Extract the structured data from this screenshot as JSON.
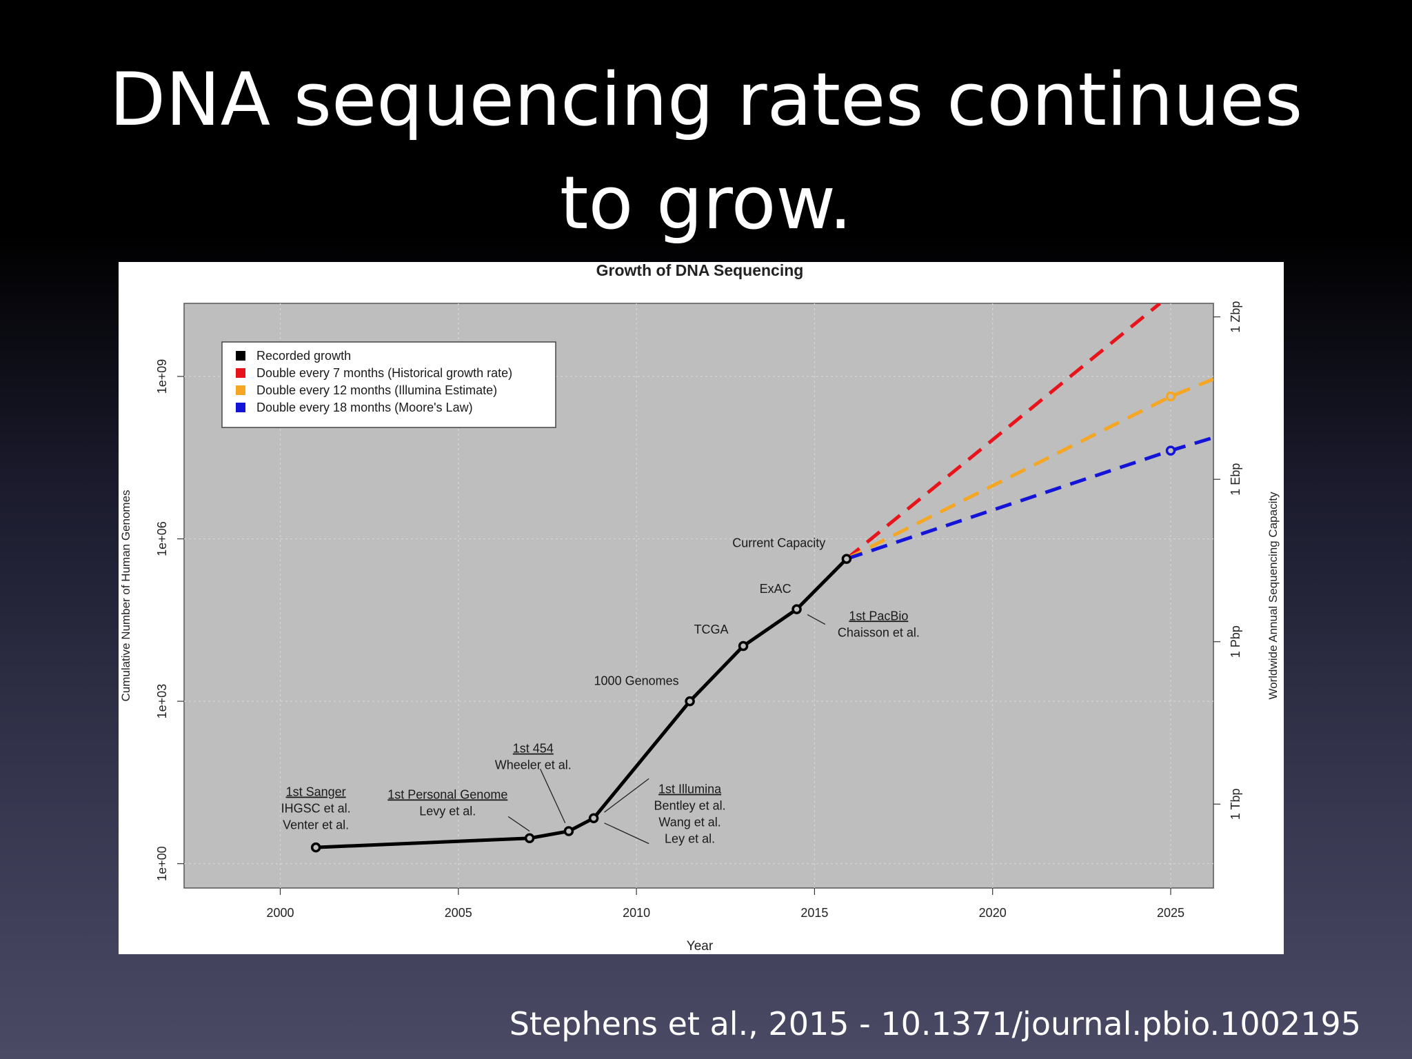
{
  "slide": {
    "title_line1": "DNA sequencing rates continues",
    "title_line2": "to grow.",
    "citation": "Stephens et al., 2015 - 10.1371/journal.pbio.1002195"
  },
  "chart_data": {
    "type": "line",
    "title": "Growth of DNA Sequencing",
    "xlabel": "Year",
    "ylabel": "Cumulative Number of Human Genomes",
    "y2label": "Worldwide Annual Sequencing Capacity",
    "y_scale": "log10",
    "xlim": [
      1997.3,
      2026.2
    ],
    "ylim_log10": [
      -0.45,
      10.35
    ],
    "grid": true,
    "background": "#bebebe",
    "x_ticks": [
      2000,
      2005,
      2010,
      2015,
      2020,
      2025
    ],
    "x_tick_labels": [
      "2000",
      "2005",
      "2010",
      "2015",
      "2020",
      "2025"
    ],
    "y_ticks_log10": [
      0,
      3,
      6,
      9
    ],
    "y_tick_labels": [
      "1e+00",
      "1e+03",
      "1e+06",
      "1e+09"
    ],
    "y2_ticks_log10": [
      1.1,
      4.1,
      7.1,
      10.1
    ],
    "y2_tick_labels": [
      "1 Tbp",
      "1 Pbp",
      "1 Ebp",
      "1 Zbp"
    ],
    "legend": {
      "position": "top-left",
      "entries": [
        {
          "label": "Recorded growth",
          "color": "#000000"
        },
        {
          "label": "Double every 7 months (Historical growth rate)",
          "color": "#e8141c"
        },
        {
          "label": "Double every 12 months (Illumina Estimate)",
          "color": "#f5a623"
        },
        {
          "label": "Double every 18 months (Moore's Law)",
          "color": "#1414d8"
        }
      ]
    },
    "series": [
      {
        "name": "Recorded growth",
        "color": "#000000",
        "style": "solid",
        "points": [
          {
            "x": 2001.0,
            "y_log10": 0.3
          },
          {
            "x": 2007.0,
            "y_log10": 0.47
          },
          {
            "x": 2008.1,
            "y_log10": 0.6
          },
          {
            "x": 2008.8,
            "y_log10": 0.84
          },
          {
            "x": 2011.5,
            "y_log10": 3.0
          },
          {
            "x": 2013.0,
            "y_log10": 4.02
          },
          {
            "x": 2014.5,
            "y_log10": 4.7
          },
          {
            "x": 2015.9,
            "y_log10": 5.63
          }
        ]
      },
      {
        "name": "Double every 7 months (Historical growth rate)",
        "color": "#e8141c",
        "style": "dashed",
        "points": [
          {
            "x": 2015.9,
            "y_log10": 5.63
          },
          {
            "x": 2024.7,
            "y_log10": 10.35
          }
        ]
      },
      {
        "name": "Double every 12 months (Illumina Estimate)",
        "color": "#f5a623",
        "style": "dashed",
        "points": [
          {
            "x": 2015.9,
            "y_log10": 5.63
          },
          {
            "x": 2025.0,
            "y_log10": 8.63
          },
          {
            "x": 2026.2,
            "y_log10": 8.95
          }
        ]
      },
      {
        "name": "Double every 18 months (Moore's Law)",
        "color": "#1414d8",
        "style": "dashed",
        "points": [
          {
            "x": 2015.9,
            "y_log10": 5.63
          },
          {
            "x": 2025.0,
            "y_log10": 7.63
          },
          {
            "x": 2026.2,
            "y_log10": 7.87
          }
        ]
      }
    ],
    "markers": [
      {
        "x": 2001.0,
        "y_log10": 0.3,
        "color": "#000000"
      },
      {
        "x": 2007.0,
        "y_log10": 0.47,
        "color": "#000000"
      },
      {
        "x": 2008.1,
        "y_log10": 0.6,
        "color": "#000000"
      },
      {
        "x": 2008.8,
        "y_log10": 0.84,
        "color": "#000000"
      },
      {
        "x": 2011.5,
        "y_log10": 3.0,
        "color": "#000000"
      },
      {
        "x": 2013.0,
        "y_log10": 4.02,
        "color": "#000000"
      },
      {
        "x": 2014.5,
        "y_log10": 4.7,
        "color": "#000000"
      },
      {
        "x": 2015.9,
        "y_log10": 5.63,
        "color": "#000000"
      },
      {
        "x": 2025.0,
        "y_log10": 8.63,
        "color": "#f5a623"
      },
      {
        "x": 2025.0,
        "y_log10": 7.63,
        "color": "#1414d8"
      }
    ],
    "annotations": [
      {
        "lines": [
          "1st Sanger",
          "IHGSC et al.",
          "Venter et al."
        ],
        "underline_first": true,
        "x": 2001.0,
        "y_log10": 1.25
      },
      {
        "lines": [
          "1st Personal Genome",
          "Levy et al."
        ],
        "underline_first": true,
        "x": 2004.7,
        "y_log10": 1.2
      },
      {
        "lines": [
          "1st 454",
          "Wheeler et al."
        ],
        "underline_first": true,
        "x": 2007.1,
        "y_log10": 2.05
      },
      {
        "lines": [
          "1000 Genomes"
        ],
        "underline_first": false,
        "x": 2010.0,
        "y_log10": 3.3
      },
      {
        "lines": [
          "TCGA"
        ],
        "underline_first": false,
        "x": 2012.1,
        "y_log10": 4.25
      },
      {
        "lines": [
          "ExAC"
        ],
        "underline_first": false,
        "x": 2013.9,
        "y_log10": 5.0
      },
      {
        "lines": [
          "Current Capacity"
        ],
        "underline_first": false,
        "x": 2014.0,
        "y_log10": 5.85
      },
      {
        "lines": [
          "1st PacBio",
          "Chaisson et al."
        ],
        "underline_first": true,
        "x": 2016.8,
        "y_log10": 4.5
      },
      {
        "lines": [
          "1st Illumina",
          "Bentley et al.",
          "Wang et al.",
          "Ley et al."
        ],
        "underline_first": true,
        "x": 2011.5,
        "y_log10": 1.3
      }
    ],
    "leaders": [
      {
        "from": {
          "x": 2006.4,
          "y_log10": 0.87
        },
        "to": {
          "x": 2007.0,
          "y_log10": 0.6
        }
      },
      {
        "from": {
          "x": 2007.3,
          "y_log10": 1.75
        },
        "to": {
          "x": 2008.0,
          "y_log10": 0.75
        }
      },
      {
        "from": {
          "x": 2010.35,
          "y_log10": 1.57
        },
        "to": {
          "x": 2009.1,
          "y_log10": 0.95
        }
      },
      {
        "from": {
          "x": 2010.35,
          "y_log10": 0.37
        },
        "to": {
          "x": 2009.1,
          "y_log10": 0.75
        }
      },
      {
        "from": {
          "x": 2014.8,
          "y_log10": 4.6
        },
        "to": {
          "x": 2015.3,
          "y_log10": 4.42
        }
      }
    ]
  }
}
